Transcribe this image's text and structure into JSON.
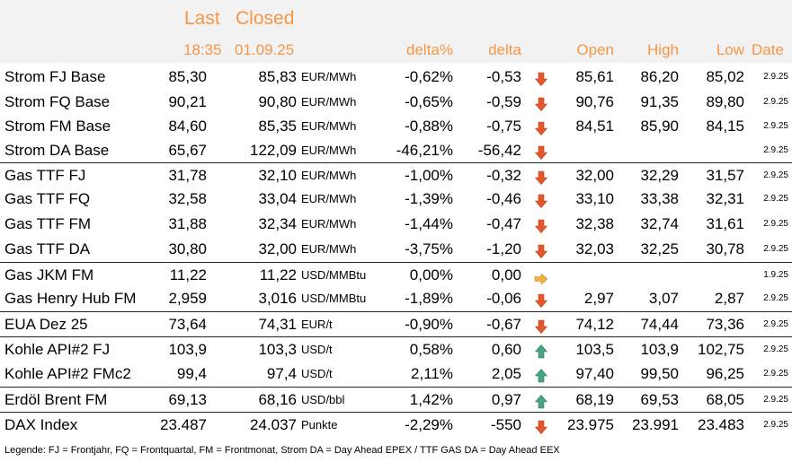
{
  "header": {
    "last": "Last",
    "closed": "Closed",
    "last_time": "18:35",
    "closed_date": "01.09.25",
    "delta_pct": "delta%",
    "delta": "delta",
    "open": "Open",
    "high": "High",
    "low": "Low",
    "date": "Date"
  },
  "colors": {
    "header_text": "#f79646",
    "header_bg": "#f2f2f2",
    "down": "#e2572b",
    "up": "#4aa383",
    "flat": "#f4b042"
  },
  "rows": [
    {
      "name": "Strom FJ Base",
      "last": "85,30",
      "closed": "85,83",
      "unit": "EUR/MWh",
      "delta_pct": "-0,62%",
      "delta": "-0,53",
      "trend": "down",
      "open": "85,61",
      "high": "86,20",
      "low": "85,02",
      "date": "2.9.25"
    },
    {
      "name": "Strom FQ Base",
      "last": "90,21",
      "closed": "90,80",
      "unit": "EUR/MWh",
      "delta_pct": "-0,65%",
      "delta": "-0,59",
      "trend": "down",
      "open": "90,76",
      "high": "91,35",
      "low": "89,80",
      "date": "2.9.25"
    },
    {
      "name": "Strom FM Base",
      "last": "84,60",
      "closed": "85,35",
      "unit": "EUR/MWh",
      "delta_pct": "-0,88%",
      "delta": "-0,75",
      "trend": "down",
      "open": "84,51",
      "high": "85,90",
      "low": "84,15",
      "date": "2.9.25"
    },
    {
      "name": "Strom DA Base",
      "last": "65,67",
      "closed": "122,09",
      "unit": "EUR/MWh",
      "delta_pct": "-46,21%",
      "delta": "-56,42",
      "trend": "down",
      "open": "",
      "high": "",
      "low": "",
      "date": "2.9.25"
    },
    {
      "name": "Gas TTF FJ",
      "last": "31,78",
      "closed": "32,10",
      "unit": "EUR/MWh",
      "delta_pct": "-1,00%",
      "delta": "-0,32",
      "trend": "down",
      "open": "32,00",
      "high": "32,29",
      "low": "31,57",
      "date": "2.9.25",
      "sep": true
    },
    {
      "name": "Gas TTF FQ",
      "last": "32,58",
      "closed": "33,04",
      "unit": "EUR/MWh",
      "delta_pct": "-1,39%",
      "delta": "-0,46",
      "trend": "down",
      "open": "33,10",
      "high": "33,38",
      "low": "32,31",
      "date": "2.9.25"
    },
    {
      "name": "Gas TTF FM",
      "last": "31,88",
      "closed": "32,34",
      "unit": "EUR/MWh",
      "delta_pct": "-1,44%",
      "delta": "-0,47",
      "trend": "down",
      "open": "32,38",
      "high": "32,74",
      "low": "31,61",
      "date": "2.9.25"
    },
    {
      "name": "Gas TTF DA",
      "last": "30,80",
      "closed": "32,00",
      "unit": "EUR/MWh",
      "delta_pct": "-3,75%",
      "delta": "-1,20",
      "trend": "down",
      "open": "32,03",
      "high": "32,25",
      "low": "30,78",
      "date": "2.9.25"
    },
    {
      "name": "Gas JKM FM",
      "last": "11,22",
      "closed": "11,22",
      "unit": "USD/MMBtu",
      "delta_pct": "0,00%",
      "delta": "0,00",
      "trend": "flat",
      "open": "",
      "high": "",
      "low": "",
      "date": "1.9.25",
      "sep": true
    },
    {
      "name": "Gas Henry Hub FM",
      "last": "2,959",
      "closed": "3,016",
      "unit": "USD/MMBtu",
      "delta_pct": "-1,89%",
      "delta": "-0,06",
      "trend": "down",
      "open": "2,97",
      "high": "3,07",
      "low": "2,87",
      "date": "2.9.25"
    },
    {
      "name": "EUA Dez 25",
      "last": "73,64",
      "closed": "74,31",
      "unit": "EUR/t",
      "delta_pct": "-0,90%",
      "delta": "-0,67",
      "trend": "down",
      "open": "74,12",
      "high": "74,44",
      "low": "73,36",
      "date": "2.9.25",
      "sep": true
    },
    {
      "name": "Kohle API#2 FJ",
      "last": "103,9",
      "closed": "103,3",
      "unit": "USD/t",
      "delta_pct": "0,58%",
      "delta": "0,60",
      "trend": "up",
      "open": "103,5",
      "high": "103,9",
      "low": "102,75",
      "date": "2.9.25",
      "sep": true
    },
    {
      "name": "Kohle API#2 FMc2",
      "last": "99,4",
      "closed": "97,4",
      "unit": "USD/t",
      "delta_pct": "2,11%",
      "delta": "2,05",
      "trend": "up",
      "open": "97,40",
      "high": "99,50",
      "low": "96,25",
      "date": "2.9.25"
    },
    {
      "name": "Erdöl Brent FM",
      "last": "69,13",
      "closed": "68,16",
      "unit": "USD/bbl",
      "delta_pct": "1,42%",
      "delta": "0,97",
      "trend": "up",
      "open": "68,19",
      "high": "69,53",
      "low": "68,05",
      "date": "2.9.25",
      "sep": true
    },
    {
      "name": "DAX Index",
      "last": "23.487",
      "closed": "24.037",
      "unit": "Punkte",
      "delta_pct": "-2,29%",
      "delta": "-550",
      "trend": "down",
      "open": "23.975",
      "high": "23.991",
      "low": "23.483",
      "date": "2.9.25",
      "sep": true
    }
  ],
  "legend": "Legende: FJ = Frontjahr, FQ = Frontquartal, FM = Frontmonat, Strom DA = Day Ahead EPEX / TTF GAS DA = Day Ahead EEX"
}
